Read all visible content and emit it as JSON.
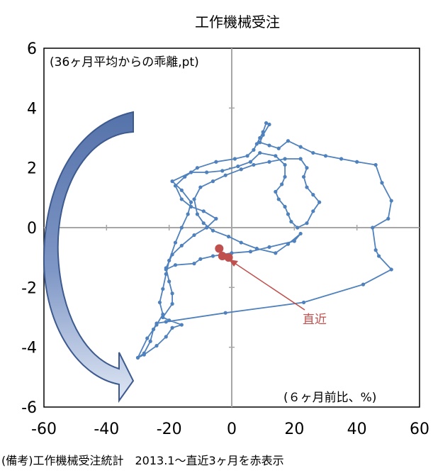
{
  "title": "工作機械受注",
  "inner_annotation": "(36ヶ月平均からの乖離,pt)",
  "corner_annotation": "(６ヶ月前比、%)",
  "footnote": "(備考)工作機械受注統計　2013.1～直近3ヶ月を赤表示",
  "recent_label": "直近",
  "colors": {
    "series": "#4f81bd",
    "recent": "#c0504d",
    "arrow_fill": "#4f6fa6",
    "arrow_light": "#dfe7f4",
    "axis": "#a6a6a6",
    "frame": "#000000"
  },
  "chart_data": {
    "type": "scatter",
    "title": "工作機械受注",
    "x_tick_labels": [
      "-60",
      "-40",
      "-20",
      "0",
      "20",
      "40",
      "60"
    ],
    "y_tick_labels": [
      "6",
      "4",
      "2",
      "0",
      "-2",
      "-4",
      "-6"
    ],
    "xlim": [
      -60,
      60
    ],
    "ylim": [
      -6,
      6
    ],
    "grid": false,
    "series": [
      {
        "values": [
          [
            -30,
            -4.35
          ],
          [
            -28,
            -4.25
          ],
          [
            -24,
            -3.95
          ],
          [
            -21,
            -3.65
          ],
          [
            -19,
            -3.35
          ],
          [
            -16,
            -3.25
          ],
          [
            -20,
            -3.1
          ],
          [
            -22,
            -3.0
          ],
          [
            -19,
            -2.55
          ],
          [
            -19,
            -2.2
          ],
          [
            -20,
            -1.8
          ],
          [
            -21,
            -1.35
          ],
          [
            -19,
            -0.9
          ],
          [
            -16,
            -0.6
          ],
          [
            -12,
            -0.25
          ],
          [
            -8,
            0.0
          ],
          [
            -5,
            0.3
          ],
          [
            -9,
            0.55
          ],
          [
            -13,
            0.7
          ],
          [
            -16,
            0.95
          ],
          [
            -18,
            1.4
          ],
          [
            -15,
            1.7
          ],
          [
            -11,
            2.0
          ],
          [
            -5,
            2.2
          ],
          [
            1,
            2.3
          ],
          [
            5,
            2.4
          ],
          [
            7,
            2.6
          ],
          [
            8,
            2.8
          ],
          [
            9,
            3.0
          ],
          [
            10,
            3.2
          ],
          [
            11,
            3.5
          ],
          [
            12,
            3.45
          ],
          [
            10,
            3.1
          ],
          [
            9,
            2.85
          ],
          [
            12,
            2.75
          ],
          [
            15,
            2.65
          ],
          [
            18,
            2.9
          ],
          [
            22,
            2.7
          ],
          [
            26,
            2.5
          ],
          [
            30,
            2.4
          ],
          [
            35,
            2.3
          ],
          [
            40,
            2.2
          ],
          [
            46,
            2.1
          ],
          [
            48,
            1.5
          ],
          [
            51,
            0.9
          ],
          [
            50,
            0.3
          ],
          [
            45,
            0.0
          ],
          [
            46,
            -0.75
          ],
          [
            47,
            -0.95
          ],
          [
            51,
            -1.4
          ],
          [
            42,
            -1.9
          ],
          [
            23,
            -2.5
          ],
          [
            -2,
            -2.85
          ],
          [
            -21,
            -3.15
          ],
          [
            -24,
            -3.2
          ],
          [
            -25,
            -3.4
          ],
          [
            -26,
            -3.8
          ],
          [
            -28,
            -4.2
          ],
          [
            -30,
            -4.35
          ],
          [
            -27,
            -3.7
          ],
          [
            -24,
            -3.25
          ],
          [
            -22,
            -2.9
          ],
          [
            -23,
            -2.5
          ],
          [
            -22,
            -2.05
          ],
          [
            -21,
            -1.55
          ],
          [
            -20,
            -1.1
          ],
          [
            -18,
            -0.5
          ],
          [
            -16,
            0.0
          ],
          [
            -14,
            0.45
          ],
          [
            -13,
            0.85
          ],
          [
            -16,
            1.25
          ],
          [
            -19,
            1.55
          ],
          [
            -13,
            1.85
          ],
          [
            -8,
            1.85
          ],
          [
            -3,
            1.9
          ],
          [
            2,
            2.05
          ],
          [
            6,
            2.2
          ],
          [
            9,
            2.5
          ],
          [
            14,
            2.4
          ],
          [
            17,
            2.1
          ],
          [
            17,
            1.7
          ],
          [
            16,
            1.45
          ],
          [
            14,
            1.2
          ],
          [
            15,
            0.95
          ],
          [
            17,
            0.7
          ],
          [
            18,
            0.45
          ],
          [
            19,
            0.2
          ],
          [
            21,
            0.0
          ],
          [
            24,
            0.15
          ],
          [
            26,
            0.55
          ],
          [
            28,
            0.85
          ],
          [
            26,
            1.1
          ],
          [
            24,
            1.35
          ],
          [
            23,
            1.7
          ],
          [
            24,
            2.0
          ],
          [
            22,
            2.3
          ],
          [
            17,
            2.3
          ],
          [
            12,
            2.2
          ],
          [
            7,
            2.1
          ],
          [
            3,
            1.95
          ],
          [
            -2,
            1.75
          ],
          [
            -6,
            1.55
          ],
          [
            -10,
            1.35
          ],
          [
            -12,
            0.95
          ],
          [
            -11,
            0.45
          ],
          [
            -9,
            0.15
          ],
          [
            -6,
            -0.1
          ],
          [
            -1,
            -0.3
          ],
          [
            3,
            -0.5
          ],
          [
            8,
            -0.7
          ],
          [
            14,
            -0.85
          ],
          [
            18,
            -0.55
          ],
          [
            22,
            -0.2
          ],
          [
            20,
            -0.45
          ],
          [
            12,
            -0.65
          ],
          [
            6,
            -0.8
          ],
          [
            0,
            -0.85
          ],
          [
            -6,
            -0.95
          ],
          [
            -10,
            -1.05
          ],
          [
            -12,
            -1.2
          ],
          [
            -18,
            -1.25
          ],
          [
            -21,
            -1.4
          ]
        ]
      },
      {
        "values": [
          [
            -4,
            -0.7
          ],
          [
            -3,
            -0.95
          ],
          [
            -1,
            -1.0
          ]
        ]
      }
    ]
  }
}
